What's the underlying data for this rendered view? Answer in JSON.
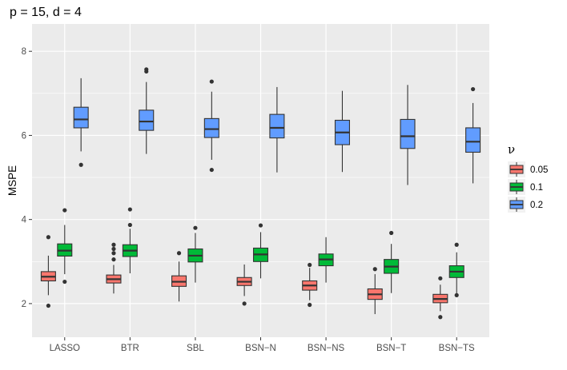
{
  "chart_data": {
    "type": "boxplot",
    "title": "p = 15, d = 4",
    "xlabel": "",
    "ylabel": "MSPE",
    "ylim": [
      1.2,
      8.65
    ],
    "yticks": [
      2,
      4,
      6,
      8
    ],
    "grid": true,
    "legend": {
      "title": "ν",
      "position": "right",
      "entries": [
        "0.05",
        "0.1",
        "0.2"
      ]
    },
    "categories": [
      "LASSO",
      "BTR",
      "SBL",
      "BSN−N",
      "BSN−NS",
      "BSN−T",
      "BSN−TS"
    ],
    "series": [
      {
        "name": "0.05",
        "color": "#F8766D",
        "boxes": [
          {
            "min": 2.2,
            "q1": 2.54,
            "median": 2.64,
            "q3": 2.76,
            "max": 3.14,
            "outliers": [
              3.58,
              1.95
            ]
          },
          {
            "min": 2.24,
            "q1": 2.49,
            "median": 2.58,
            "q3": 2.68,
            "max": 2.92,
            "outliers": [
              3.4,
              3.3,
              3.2,
              3.05
            ]
          },
          {
            "min": 2.05,
            "q1": 2.41,
            "median": 2.52,
            "q3": 2.66,
            "max": 3.0,
            "outliers": [
              3.2
            ]
          },
          {
            "min": 2.18,
            "q1": 2.43,
            "median": 2.52,
            "q3": 2.62,
            "max": 2.93,
            "outliers": [
              2.0
            ]
          },
          {
            "min": 2.08,
            "q1": 2.32,
            "median": 2.43,
            "q3": 2.54,
            "max": 2.85,
            "outliers": [
              2.92,
              1.97
            ]
          },
          {
            "min": 1.75,
            "q1": 2.1,
            "median": 2.22,
            "q3": 2.35,
            "max": 2.7,
            "outliers": [
              2.82
            ]
          },
          {
            "min": 1.82,
            "q1": 2.02,
            "median": 2.11,
            "q3": 2.22,
            "max": 2.45,
            "outliers": [
              2.6,
              1.68
            ]
          }
        ]
      },
      {
        "name": "0.1",
        "color": "#00BA38",
        "boxes": [
          {
            "min": 2.7,
            "q1": 3.13,
            "median": 3.26,
            "q3": 3.42,
            "max": 3.87,
            "outliers": [
              4.22,
              2.52
            ]
          },
          {
            "min": 2.72,
            "q1": 3.12,
            "median": 3.26,
            "q3": 3.4,
            "max": 3.78,
            "outliers": [
              4.24,
              3.87
            ]
          },
          {
            "min": 2.5,
            "q1": 2.99,
            "median": 3.14,
            "q3": 3.3,
            "max": 3.68,
            "outliers": [
              3.8
            ]
          },
          {
            "min": 2.6,
            "q1": 3.0,
            "median": 3.17,
            "q3": 3.32,
            "max": 3.7,
            "outliers": [
              3.86
            ]
          },
          {
            "min": 2.5,
            "q1": 2.9,
            "median": 3.05,
            "q3": 3.18,
            "max": 3.58,
            "outliers": []
          },
          {
            "min": 2.25,
            "q1": 2.72,
            "median": 2.88,
            "q3": 3.05,
            "max": 3.42,
            "outliers": [
              3.68
            ]
          },
          {
            "min": 2.24,
            "q1": 2.62,
            "median": 2.76,
            "q3": 2.9,
            "max": 3.22,
            "outliers": [
              3.4,
              2.2
            ]
          }
        ]
      },
      {
        "name": "0.2",
        "color": "#619CFF",
        "boxes": [
          {
            "min": 5.62,
            "q1": 6.18,
            "median": 6.38,
            "q3": 6.67,
            "max": 7.36,
            "outliers": [
              5.3
            ]
          },
          {
            "min": 5.56,
            "q1": 6.12,
            "median": 6.33,
            "q3": 6.6,
            "max": 7.27,
            "outliers": [
              7.57,
              7.52
            ]
          },
          {
            "min": 5.42,
            "q1": 5.95,
            "median": 6.15,
            "q3": 6.4,
            "max": 7.04,
            "outliers": [
              7.28,
              5.18
            ]
          },
          {
            "min": 5.12,
            "q1": 5.94,
            "median": 6.18,
            "q3": 6.5,
            "max": 7.15,
            "outliers": []
          },
          {
            "min": 5.13,
            "q1": 5.78,
            "median": 6.07,
            "q3": 6.36,
            "max": 7.06,
            "outliers": []
          },
          {
            "min": 4.82,
            "q1": 5.69,
            "median": 5.98,
            "q3": 6.38,
            "max": 7.2,
            "outliers": []
          },
          {
            "min": 4.86,
            "q1": 5.6,
            "median": 5.85,
            "q3": 6.18,
            "max": 6.77,
            "outliers": [
              7.1
            ]
          }
        ]
      }
    ]
  }
}
